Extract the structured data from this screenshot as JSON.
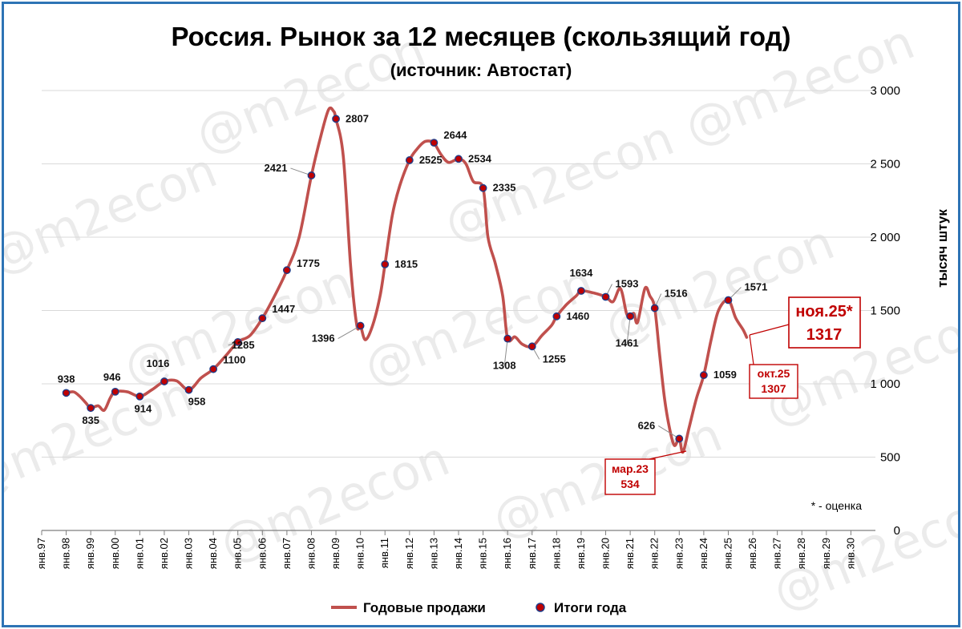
{
  "chart_data": {
    "type": "line",
    "title": "Россия. Рынок за 12 месяцев (скользящий год)",
    "subtitle": "(источник: Автостат)",
    "ylabel": "тысяч штук",
    "ylim": [
      0,
      3000
    ],
    "yticks": [
      0,
      500,
      1000,
      1500,
      2000,
      2500,
      3000
    ],
    "ytick_labels": [
      "0",
      "500",
      "1 000",
      "1 500",
      "2 000",
      "2 500",
      "3 000"
    ],
    "x_categories": [
      "янв.97",
      "янв.98",
      "янв.99",
      "янв.00",
      "янв.01",
      "янв.02",
      "янв.03",
      "янв.04",
      "янв.05",
      "янв.06",
      "янв.07",
      "янв.08",
      "янв.09",
      "янв.10",
      "янв.11",
      "янв.12",
      "янв.13",
      "янв.14",
      "янв.15",
      "янв.16",
      "янв.17",
      "янв.18",
      "янв.19",
      "янв.20",
      "янв.21",
      "янв.22",
      "янв.23",
      "янв.24",
      "янв.25",
      "янв.26",
      "янв.27",
      "янв.28",
      "янв.29",
      "янв.30"
    ],
    "grid": true,
    "legend_position": "bottom",
    "series": [
      {
        "name": "Годовые продажи",
        "color": "#c0504d",
        "x": [
          1998.0,
          1998.3,
          1998.55,
          1998.8,
          1999.0,
          1999.3,
          1999.55,
          1999.8,
          2000.0,
          2000.5,
          2001.0,
          2001.5,
          2002.0,
          2002.5,
          2003.0,
          2003.5,
          2004.0,
          2004.5,
          2005.0,
          2005.5,
          2006.0,
          2006.5,
          2007.0,
          2007.5,
          2008.0,
          2008.4,
          2008.7,
          2008.9,
          2009.0,
          2009.3,
          2009.6,
          2009.85,
          2010.0,
          2010.2,
          2010.5,
          2010.8,
          2011.0,
          2011.3,
          2011.6,
          2012.0,
          2012.3,
          2012.6,
          2012.85,
          2013.0,
          2013.3,
          2013.6,
          2014.0,
          2014.3,
          2014.6,
          2015.0,
          2015.2,
          2015.5,
          2015.8,
          2016.0,
          2016.3,
          2016.6,
          2017.0,
          2017.4,
          2017.8,
          2018.0,
          2018.4,
          2018.8,
          2019.0,
          2019.5,
          2020.0,
          2020.3,
          2020.6,
          2020.85,
          2021.0,
          2021.15,
          2021.3,
          2021.6,
          2021.8,
          2022.0,
          2022.2,
          2022.4,
          2022.6,
          2022.8,
          2023.0,
          2023.15,
          2023.4,
          2023.7,
          2024.0,
          2024.3,
          2024.6,
          2025.0,
          2025.3,
          2025.6,
          2025.75
        ],
        "values": [
          938,
          945,
          915,
          870,
          835,
          850,
          820,
          905,
          946,
          945,
          914,
          960,
          1016,
          1020,
          958,
          1040,
          1100,
          1190,
          1285,
          1330,
          1447,
          1600,
          1775,
          2000,
          2421,
          2700,
          2870,
          2860,
          2807,
          2550,
          1800,
          1400,
          1396,
          1300,
          1400,
          1600,
          1815,
          2150,
          2350,
          2525,
          2600,
          2650,
          2655,
          2644,
          2560,
          2510,
          2534,
          2500,
          2380,
          2335,
          2000,
          1820,
          1600,
          1308,
          1320,
          1270,
          1255,
          1330,
          1400,
          1460,
          1540,
          1600,
          1634,
          1620,
          1593,
          1560,
          1650,
          1480,
          1461,
          1480,
          1420,
          1650,
          1600,
          1516,
          1200,
          900,
          700,
          580,
          626,
          534,
          700,
          900,
          1059,
          1300,
          1500,
          1571,
          1450,
          1370,
          1317
        ]
      },
      {
        "name": "Итоги года",
        "color": "#c00000",
        "x": [
          1998,
          1999,
          2000,
          2001,
          2002,
          2003,
          2004,
          2005,
          2006,
          2007,
          2008,
          2009,
          2010,
          2011,
          2012,
          2013,
          2014,
          2015,
          2016,
          2017,
          2018,
          2019,
          2020,
          2021,
          2022,
          2023,
          2024,
          2025
        ],
        "values": [
          938,
          835,
          946,
          914,
          1016,
          958,
          1100,
          1285,
          1447,
          1775,
          2421,
          2807,
          1396,
          1815,
          2525,
          2644,
          2534,
          2335,
          1308,
          1255,
          1460,
          1634,
          1593,
          1461,
          1516,
          626,
          1059,
          1571
        ],
        "labels": [
          "938",
          "835",
          "946",
          "914",
          "1016",
          "958",
          "1100",
          "1285",
          "1447",
          "1775",
          "2421",
          "2807",
          "1396",
          "1815",
          "2525",
          "2644",
          "2534",
          "2335",
          "1308",
          "1255",
          "1460",
          "1634",
          "1593",
          "1461",
          "1516",
          "626",
          "1059",
          "1571"
        ]
      }
    ],
    "extra_point_labels": [
      "2644"
    ],
    "callouts": [
      {
        "label": "ноя.25*",
        "value": "1317"
      },
      {
        "label": "окт.25",
        "value": "1307"
      },
      {
        "label": "мар.23",
        "value": "534"
      }
    ],
    "note": "* - оценка",
    "watermark": "@m2econ"
  },
  "colors": {
    "line": "#c0504d",
    "marker_fill": "#c00000",
    "marker_edge": "#1f3c88",
    "callout": "#c00000",
    "frame": "#2e74b5",
    "grid": "#d9d9d9"
  }
}
